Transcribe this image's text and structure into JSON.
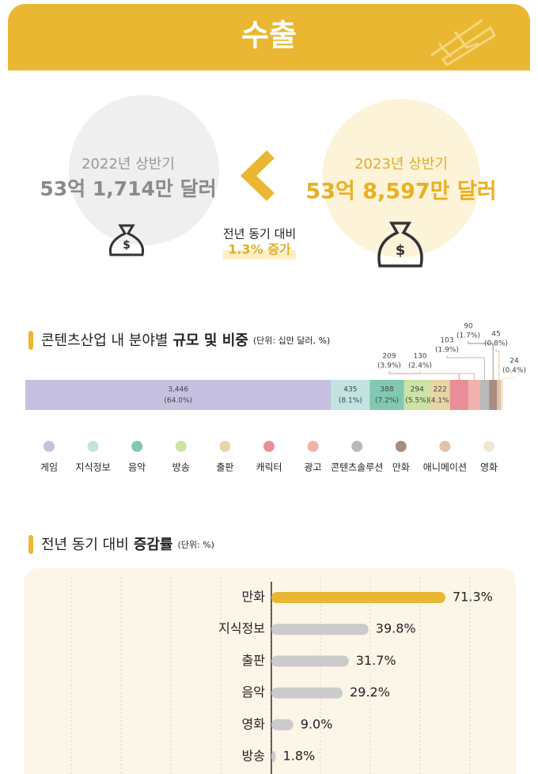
{
  "header": {
    "title": "수출"
  },
  "comparison": {
    "prev_period": "2022년 상반기",
    "prev_amount": "53억 1,714만 달러",
    "curr_period": "2023년 상반기",
    "curr_amount": "53억 8,597만 달러",
    "change_label": "전년 동기 대비",
    "change_value": "1.3% 증가"
  },
  "chart_data": [
    {
      "type": "stacked-bar",
      "title": "콘텐츠산업 내 분야별",
      "title_emphasis": "규모 및 비중",
      "unit": "(단위: 십만 달러, %)",
      "series": [
        {
          "name": "게임",
          "color": "#c6c1e1",
          "values": [
            3446
          ],
          "value_labels": [
            "3,446"
          ],
          "shares": [
            64.0
          ],
          "share_labels": [
            "(64.0%)"
          ]
        },
        {
          "name": "지식정보",
          "color": "#c3e3e3",
          "values": [
            435
          ],
          "shares": [
            8.1
          ],
          "share_labels": [
            "(8.1%)"
          ]
        },
        {
          "name": "음악",
          "color": "#82c8b2",
          "values": [
            388
          ],
          "shares": [
            7.2
          ],
          "share_labels": [
            "(7.2%)"
          ]
        },
        {
          "name": "방송",
          "color": "#cbe3a3",
          "values": [
            294
          ],
          "shares": [
            5.5
          ],
          "share_labels": [
            "(5.5%)"
          ]
        },
        {
          "name": "출판",
          "color": "#e8d5a5",
          "values": [
            222
          ],
          "shares": [
            4.1
          ],
          "share_labels": [
            "(4.1%)"
          ]
        },
        {
          "name": "캐릭터",
          "color": "#ea8e99",
          "values": [
            209
          ],
          "shares": [
            3.9
          ],
          "share_labels": [
            "(3.9%)"
          ]
        },
        {
          "name": "광고",
          "color": "#f1b1ab",
          "values": [
            130
          ],
          "shares": [
            2.4
          ],
          "share_labels": [
            "(2.4%)"
          ]
        },
        {
          "name": "콘텐츠솔루션",
          "color": "#b9b9b9",
          "values": [
            103
          ],
          "shares": [
            1.9
          ],
          "share_labels": [
            "(1.9%)"
          ]
        },
        {
          "name": "만화",
          "color": "#a98b7f",
          "values": [
            90
          ],
          "shares": [
            1.7
          ],
          "share_labels": [
            "(1.7%)"
          ]
        },
        {
          "name": "애니메이션",
          "color": "#e0c2a8",
          "values": [
            45
          ],
          "shares": [
            0.8
          ],
          "share_labels": [
            "(0.8%)"
          ]
        },
        {
          "name": "영화",
          "color": "#f1e6d2",
          "values": [
            24
          ],
          "shares": [
            0.4
          ],
          "share_labels": [
            "(0.4%)"
          ]
        }
      ]
    },
    {
      "type": "hbar",
      "title": "전년 동기 대비",
      "title_emphasis": "증감률",
      "unit": "(단위: %)",
      "categories": [
        "만화",
        "지식정보",
        "출판",
        "음악",
        "영화",
        "방송"
      ],
      "values": [
        71.3,
        39.8,
        31.7,
        29.2,
        9.0,
        1.8
      ],
      "value_labels": [
        "71.3%",
        "39.8%",
        "31.7%",
        "29.2%",
        "9.0%",
        "1.8%"
      ],
      "colors": [
        "#e9b731",
        "#cbcbcb",
        "#cbcbcb",
        "#cbcbcb",
        "#cbcbcb",
        "#cbcbcb"
      ]
    }
  ]
}
